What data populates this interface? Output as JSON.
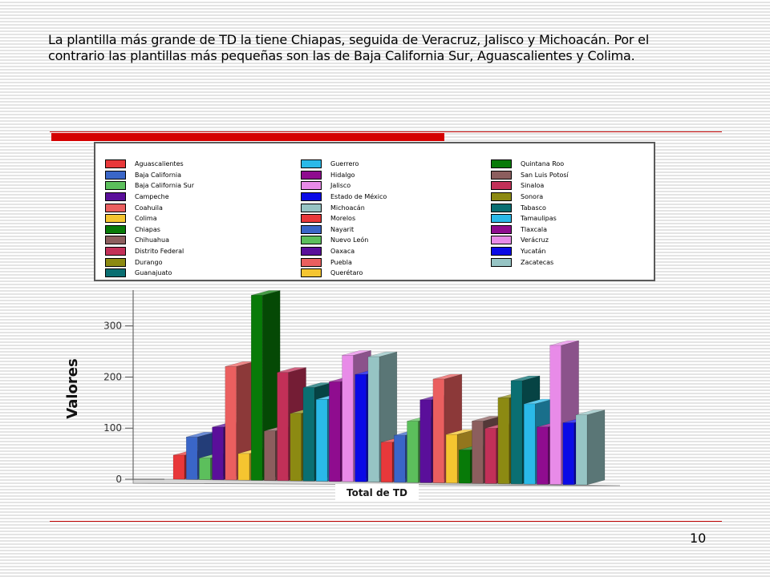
{
  "text": "La plantilla más grande de TD la tiene Chiapas, seguida de Veracruz, Jalisco y Michoacán. Por el contrario las plantillas más pequeñas son las de Baja California Sur, Aguascalientes y Colima.",
  "page_number": "10",
  "chart_data": {
    "type": "bar",
    "title": "",
    "xlabel": "Total de TD",
    "ylabel": "Valores",
    "ylim": [
      0,
      370
    ],
    "yticks": [
      0,
      100,
      200,
      300
    ],
    "grid": false,
    "legend_position": "top",
    "style": "3d",
    "series": [
      {
        "name": "Aguascalientes",
        "value": 47,
        "color": "#e8383a"
      },
      {
        "name": "Baja California",
        "value": 83,
        "color": "#3a66c8"
      },
      {
        "name": "Baja California Sur",
        "value": 42,
        "color": "#5cbf5c"
      },
      {
        "name": "Campeche",
        "value": 103,
        "color": "#5a0f9a"
      },
      {
        "name": "Coahuila",
        "value": 222,
        "color": "#ea5f5f"
      },
      {
        "name": "Colima",
        "value": 52,
        "color": "#f5c530"
      },
      {
        "name": "Chiapas",
        "value": 362,
        "color": "#087a08"
      },
      {
        "name": "Chihuahua",
        "value": 97,
        "color": "#8c5e5e"
      },
      {
        "name": "Distrito Federal",
        "value": 212,
        "color": "#c23058"
      },
      {
        "name": "Durango",
        "value": 132,
        "color": "#8c8a12"
      },
      {
        "name": "Guanajuato",
        "value": 183,
        "color": "#0a6f72"
      },
      {
        "name": "Guerrero",
        "value": 160,
        "color": "#2ab9e8"
      },
      {
        "name": "Hidalgo",
        "value": 195,
        "color": "#8f0c8f"
      },
      {
        "name": "Jalisco",
        "value": 247,
        "color": "#e88be8"
      },
      {
        "name": "Estado de México",
        "value": 210,
        "color": "#0a0ae6"
      },
      {
        "name": "Michoacán",
        "value": 245,
        "color": "#96c4c4"
      },
      {
        "name": "Morelos",
        "value": 78,
        "color": "#e8383a"
      },
      {
        "name": "Nayarit",
        "value": 92,
        "color": "#3a66c8"
      },
      {
        "name": "Nuevo León",
        "value": 120,
        "color": "#5cbf5c"
      },
      {
        "name": "Oaxaca",
        "value": 162,
        "color": "#5a0f9a"
      },
      {
        "name": "Puebla",
        "value": 203,
        "color": "#ea5f5f"
      },
      {
        "name": "Querétaro",
        "value": 95,
        "color": "#f5c530"
      },
      {
        "name": "Quintana Roo",
        "value": 65,
        "color": "#087a08"
      },
      {
        "name": "San Luis Potosí",
        "value": 122,
        "color": "#8c5e5e"
      },
      {
        "name": "Sinaloa",
        "value": 108,
        "color": "#c23058"
      },
      {
        "name": "Sonora",
        "value": 168,
        "color": "#8c8a12"
      },
      {
        "name": "Tabasco",
        "value": 202,
        "color": "#0a6f72"
      },
      {
        "name": "Tamaulipas",
        "value": 157,
        "color": "#2ab9e8"
      },
      {
        "name": "Tlaxcala",
        "value": 112,
        "color": "#8f0c8f"
      },
      {
        "name": "Verácruz",
        "value": 272,
        "color": "#e88be8"
      },
      {
        "name": "Yucatán",
        "value": 121,
        "color": "#0a0ae6"
      },
      {
        "name": "Zacatecas",
        "value": 137,
        "color": "#96c4c4"
      }
    ]
  }
}
